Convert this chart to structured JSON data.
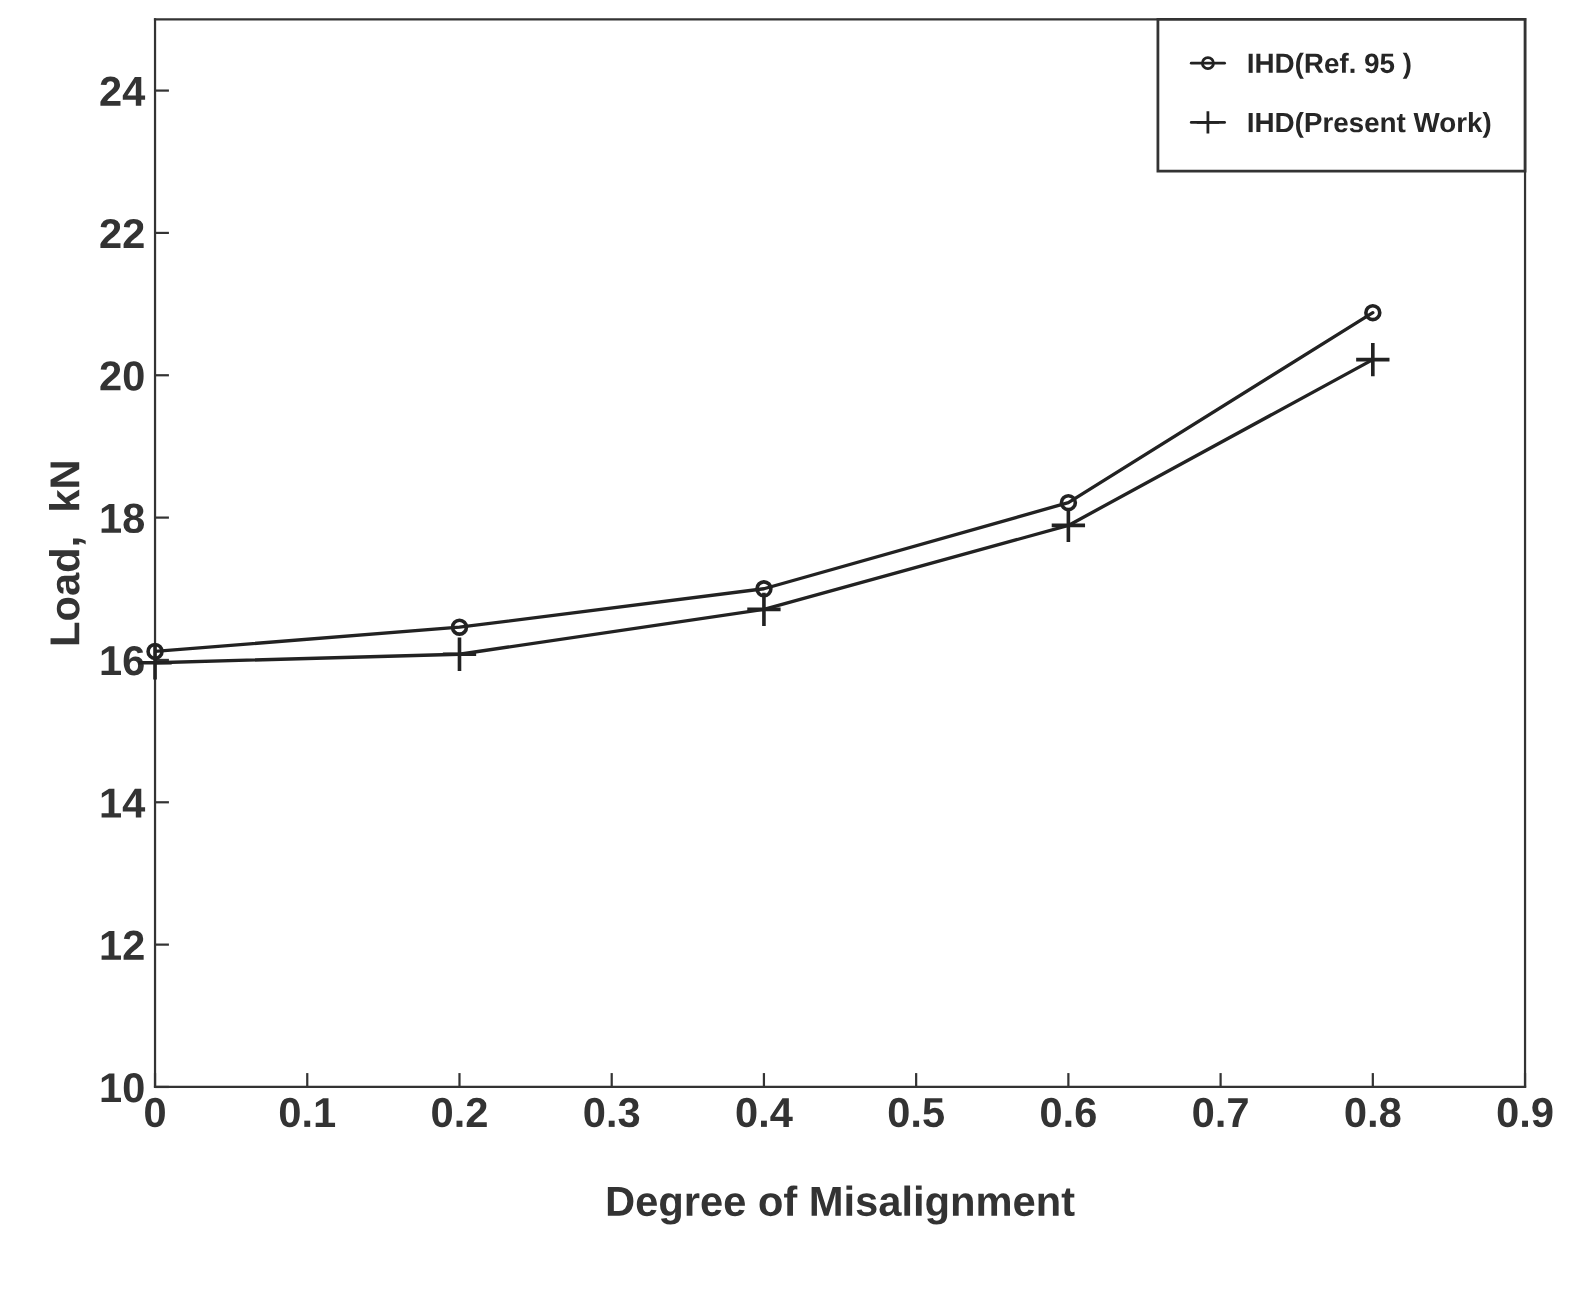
{
  "chart_data": {
    "type": "line",
    "xlabel": "Degree of Misalignment",
    "ylabel": "Load,  kN",
    "x": [
      0,
      0.2,
      0.4,
      0.6,
      0.8
    ],
    "series": [
      {
        "name": "IHD(Ref. 95 )",
        "color": "#222222",
        "marker": "circle",
        "values": [
          16.12,
          16.46,
          17.0,
          18.21,
          20.88
        ]
      },
      {
        "name": "IHD(Present Work)",
        "color": "#222222",
        "marker": "cross",
        "values": [
          15.96,
          16.08,
          16.71,
          17.89,
          20.22
        ]
      }
    ],
    "xlim": [
      0,
      0.9
    ],
    "xticks": [
      0,
      0.1,
      0.2,
      0.3,
      0.4,
      0.5,
      0.6,
      0.7,
      0.8,
      0.9
    ],
    "ylim": [
      10,
      25
    ],
    "yticks": [
      10,
      12,
      14,
      16,
      18,
      20,
      22,
      24
    ],
    "grid": false,
    "legend": "top right"
  }
}
